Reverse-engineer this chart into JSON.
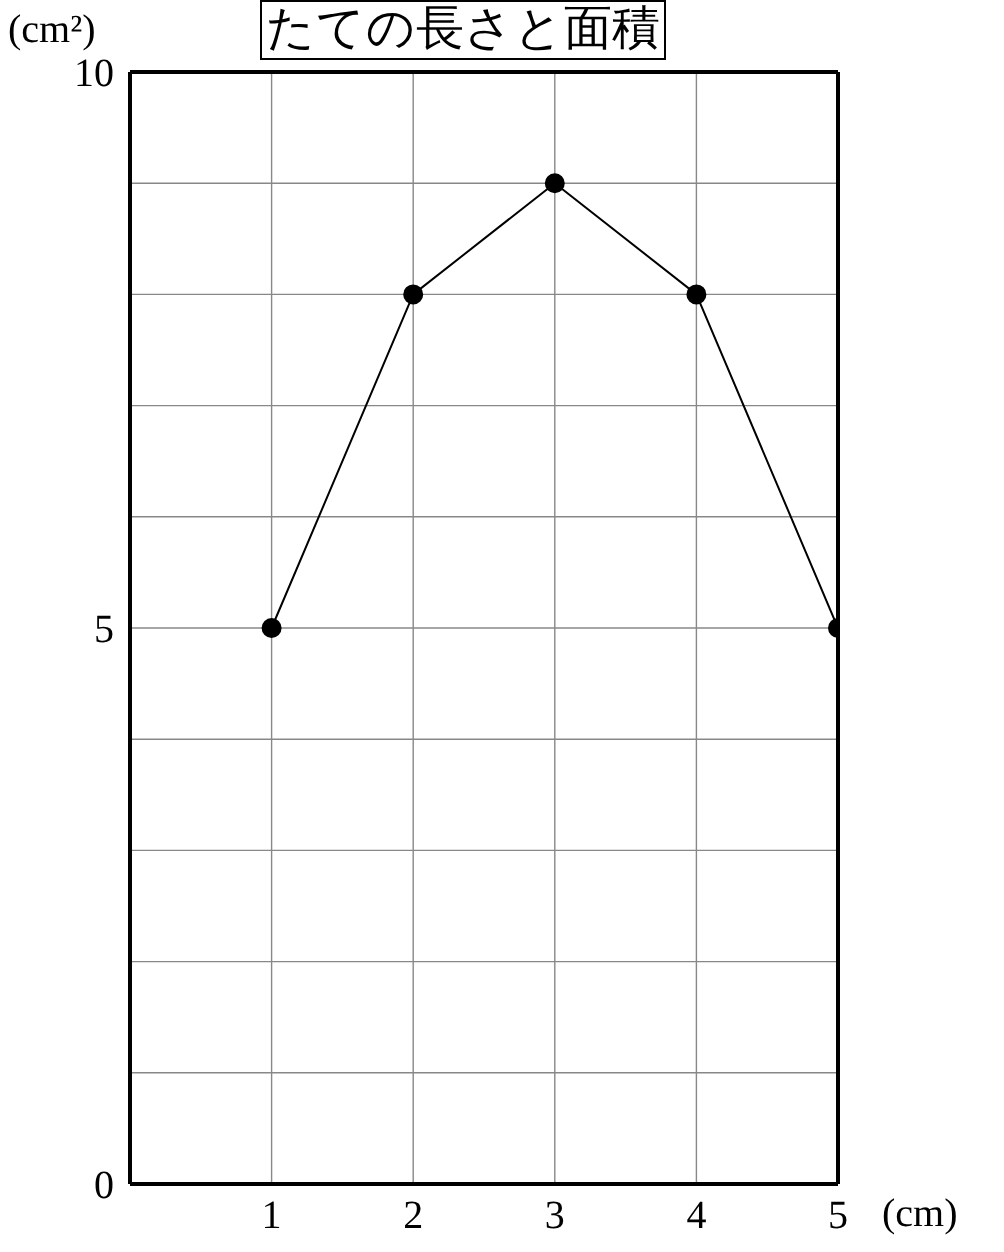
{
  "chart_data": {
    "type": "line",
    "title": "たての長さと面積",
    "xlabel": "(cm)",
    "ylabel": "(cm²)",
    "x": [
      1,
      2,
      3,
      4,
      5
    ],
    "series": [
      {
        "color": "#000000",
        "values": [
          5,
          8,
          9,
          8,
          5
        ]
      }
    ],
    "xlim": [
      0,
      5
    ],
    "xticks": [
      1,
      2,
      3,
      4,
      5
    ],
    "ylim": [
      0,
      10
    ],
    "yticks": [
      0,
      {
        "value": 1,
        "label": null
      },
      {
        "value": 2,
        "label": null
      },
      {
        "value": 3,
        "label": null
      },
      {
        "value": 4,
        "label": null
      },
      5,
      {
        "value": 6,
        "label": null
      },
      {
        "value": 7,
        "label": null
      },
      {
        "value": 8,
        "label": null
      },
      {
        "value": 9,
        "label": null
      },
      10
    ],
    "grid": true,
    "marker": "circle",
    "line_style": "solid"
  }
}
